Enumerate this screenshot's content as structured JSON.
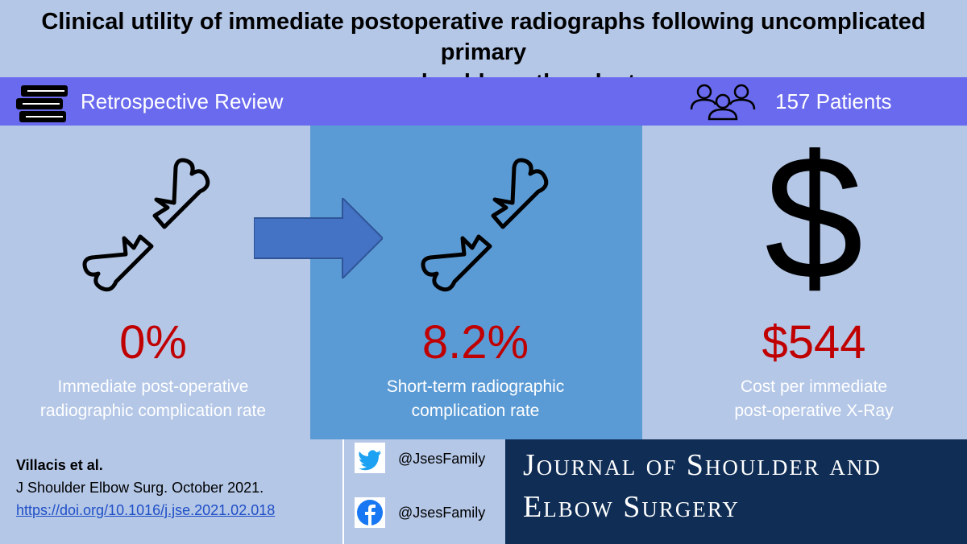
{
  "title": {
    "line1": "Clinical utility of immediate postoperative radiographs following uncomplicated primary",
    "line2": "reverse shoulder arthroplasty"
  },
  "banner": {
    "study_type": "Retrospective Review",
    "patients": "157 Patients",
    "study_icon": "books-icon",
    "patients_icon": "people-icon"
  },
  "stats": [
    {
      "value": "0%",
      "label_line1": "Immediate post-operative",
      "label_line2": "radiographic complication rate",
      "icon": "broken-bone-icon"
    },
    {
      "value": "8.2%",
      "label_line1": "Short-term radiographic",
      "label_line2": "complication rate",
      "icon": "broken-bone-icon"
    },
    {
      "value": "$544",
      "label_line1": "Cost per immediate",
      "label_line2": "post-operative X-Ray",
      "icon": "dollar-sign-icon"
    }
  ],
  "dollar_symbol": "$",
  "citation": {
    "author": "Villacis et al.",
    "journal": "J Shoulder Elbow Surg. October 2021.",
    "doi": "https://doi.org/10.1016/j.jse.2021.02.018"
  },
  "social": {
    "twitter_handle": "@JsesFamily",
    "facebook_handle": "@JsesFamily"
  },
  "journal_logo": {
    "line1": "Journal of Shoulder and",
    "line2": "Elbow Surgery"
  },
  "colors": {
    "background": "#b4c7e7",
    "banner": "#6a6aef",
    "highlight_panel": "#5b9bd5",
    "stat_value": "#c00000",
    "logo_background": "#0f2d55"
  }
}
